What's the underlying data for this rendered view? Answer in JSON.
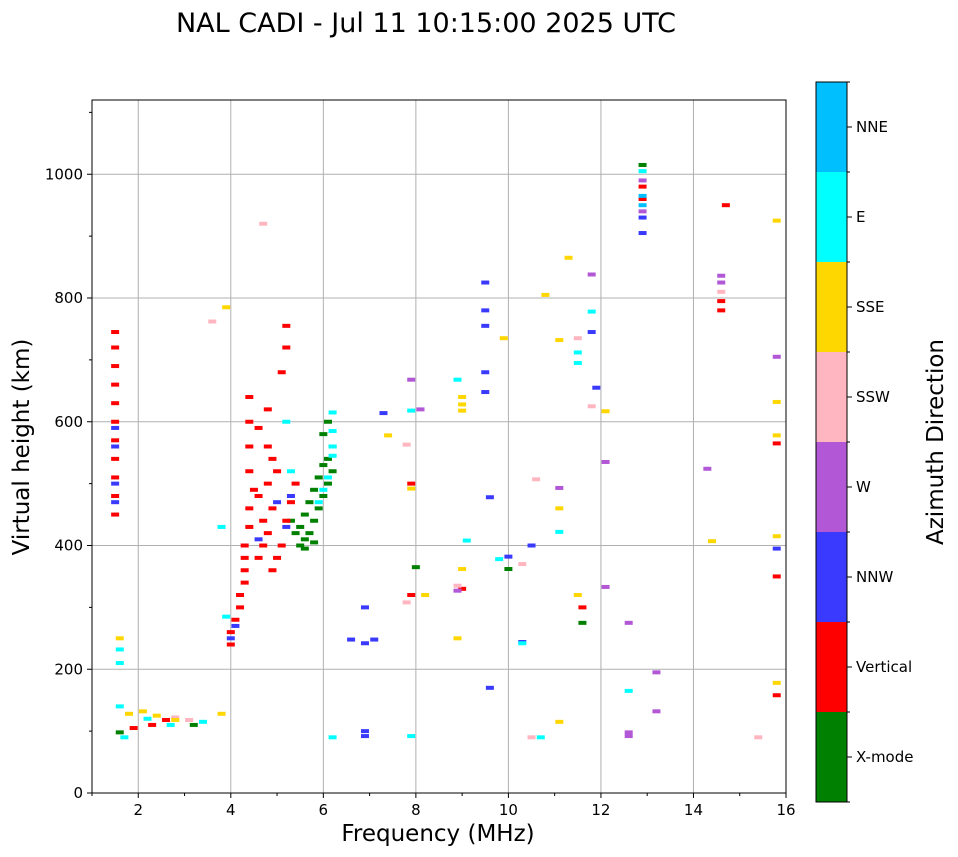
{
  "chart_data": {
    "type": "scatter",
    "title": "NAL CADI - Jul 11 10:15:00 2025 UTC",
    "xlabel": "Frequency (MHz)",
    "ylabel": "Virtual height (km)",
    "xlim": [
      1,
      16
    ],
    "ylim": [
      0,
      1120
    ],
    "xticks": [
      2,
      4,
      6,
      8,
      10,
      12,
      14,
      16
    ],
    "yticks": [
      0,
      200,
      400,
      600,
      800,
      1000
    ],
    "grid": true,
    "colorbar": {
      "label": "Azimuth Direction",
      "position": "right",
      "categories": [
        "X-mode",
        "Vertical",
        "NNW",
        "W",
        "SSW",
        "SSE",
        "E",
        "NNE"
      ],
      "colors": [
        "#008000",
        "#ff0000",
        "#3a3aff",
        "#b257d6",
        "#ffb6c1",
        "#ffd700",
        "#00ffff",
        "#00bfff"
      ]
    },
    "series": [
      {
        "name": "X-mode",
        "points": [
          [
            5.5,
            400
          ],
          [
            5.6,
            410
          ],
          [
            5.7,
            420
          ],
          [
            5.5,
            430
          ],
          [
            5.8,
            440
          ],
          [
            5.6,
            450
          ],
          [
            5.9,
            460
          ],
          [
            5.7,
            470
          ],
          [
            6.0,
            480
          ],
          [
            5.8,
            490
          ],
          [
            6.1,
            500
          ],
          [
            5.9,
            510
          ],
          [
            6.2,
            520
          ],
          [
            6.0,
            530
          ],
          [
            6.1,
            540
          ],
          [
            6.2,
            560
          ],
          [
            6.0,
            580
          ],
          [
            6.1,
            600
          ],
          [
            5.4,
            420
          ],
          [
            5.3,
            440
          ],
          [
            5.6,
            395
          ],
          [
            5.8,
            405
          ],
          [
            12.9,
            1015
          ],
          [
            1.6,
            98
          ],
          [
            3.2,
            110
          ],
          [
            11.6,
            275
          ],
          [
            8.0,
            365
          ],
          [
            10.0,
            362
          ]
        ]
      },
      {
        "name": "Vertical",
        "points": [
          [
            1.5,
            450
          ],
          [
            1.5,
            480
          ],
          [
            1.5,
            510
          ],
          [
            1.5,
            540
          ],
          [
            1.5,
            570
          ],
          [
            1.5,
            600
          ],
          [
            1.5,
            630
          ],
          [
            1.5,
            660
          ],
          [
            1.5,
            690
          ],
          [
            1.5,
            720
          ],
          [
            1.5,
            745
          ],
          [
            4.0,
            240
          ],
          [
            4.0,
            260
          ],
          [
            4.1,
            280
          ],
          [
            4.2,
            300
          ],
          [
            4.2,
            320
          ],
          [
            4.3,
            340
          ],
          [
            4.3,
            360
          ],
          [
            4.3,
            380
          ],
          [
            4.3,
            400
          ],
          [
            4.4,
            430
          ],
          [
            4.4,
            460
          ],
          [
            4.5,
            490
          ],
          [
            4.4,
            520
          ],
          [
            4.4,
            560
          ],
          [
            4.4,
            600
          ],
          [
            4.4,
            640
          ],
          [
            4.6,
            380
          ],
          [
            4.7,
            400
          ],
          [
            4.8,
            420
          ],
          [
            4.7,
            440
          ],
          [
            4.9,
            460
          ],
          [
            4.6,
            480
          ],
          [
            4.8,
            500
          ],
          [
            5.0,
            520
          ],
          [
            4.9,
            540
          ],
          [
            4.8,
            560
          ],
          [
            5.1,
            400
          ],
          [
            5.0,
            380
          ],
          [
            4.9,
            360
          ],
          [
            5.2,
            440
          ],
          [
            5.3,
            470
          ],
          [
            5.4,
            500
          ],
          [
            5.1,
            680
          ],
          [
            5.2,
            720
          ],
          [
            5.2,
            755
          ],
          [
            4.6,
            590
          ],
          [
            4.8,
            620
          ],
          [
            1.9,
            105
          ],
          [
            2.3,
            110
          ],
          [
            2.6,
            118
          ],
          [
            7.9,
            320
          ],
          [
            7.9,
            500
          ],
          [
            9.0,
            330
          ],
          [
            11.6,
            300
          ],
          [
            12.9,
            980
          ],
          [
            12.9,
            960
          ],
          [
            14.7,
            950
          ],
          [
            14.6,
            795
          ],
          [
            14.6,
            780
          ],
          [
            15.8,
            565
          ],
          [
            15.8,
            350
          ],
          [
            15.8,
            158
          ]
        ]
      },
      {
        "name": "NNW",
        "points": [
          [
            1.5,
            500
          ],
          [
            1.5,
            560
          ],
          [
            1.5,
            590
          ],
          [
            1.5,
            470
          ],
          [
            4.0,
            250
          ],
          [
            4.1,
            270
          ],
          [
            4.6,
            410
          ],
          [
            5.0,
            470
          ],
          [
            5.3,
            480
          ],
          [
            5.2,
            430
          ],
          [
            6.6,
            248
          ],
          [
            6.9,
            242
          ],
          [
            6.9,
            300
          ],
          [
            7.1,
            248
          ],
          [
            6.9,
            100
          ],
          [
            6.9,
            92
          ],
          [
            9.5,
            648
          ],
          [
            9.5,
            680
          ],
          [
            9.5,
            755
          ],
          [
            9.5,
            780
          ],
          [
            9.5,
            825
          ],
          [
            9.6,
            478
          ],
          [
            9.6,
            170
          ],
          [
            10.0,
            382
          ],
          [
            10.3,
            244
          ],
          [
            10.5,
            400
          ],
          [
            11.8,
            745
          ],
          [
            11.9,
            655
          ],
          [
            12.9,
            905
          ],
          [
            12.9,
            930
          ],
          [
            15.8,
            395
          ],
          [
            7.3,
            614
          ]
        ]
      },
      {
        "name": "W",
        "points": [
          [
            7.9,
            668
          ],
          [
            8.1,
            620
          ],
          [
            8.9,
            327
          ],
          [
            11.1,
            493
          ],
          [
            11.8,
            838
          ],
          [
            12.1,
            535
          ],
          [
            12.1,
            333
          ],
          [
            12.6,
            275
          ],
          [
            12.6,
            98
          ],
          [
            12.6,
            92
          ],
          [
            13.2,
            195
          ],
          [
            13.2,
            132
          ],
          [
            14.3,
            524
          ],
          [
            14.6,
            836
          ],
          [
            14.6,
            825
          ],
          [
            15.8,
            705
          ],
          [
            12.9,
            940
          ],
          [
            12.9,
            990
          ]
        ]
      },
      {
        "name": "SSW",
        "points": [
          [
            3.6,
            762
          ],
          [
            4.7,
            920
          ],
          [
            7.8,
            563
          ],
          [
            7.8,
            308
          ],
          [
            8.9,
            335
          ],
          [
            10.3,
            370
          ],
          [
            10.6,
            507
          ],
          [
            11.5,
            735
          ],
          [
            11.8,
            625
          ],
          [
            10.5,
            90
          ],
          [
            15.4,
            90
          ],
          [
            14.6,
            810
          ],
          [
            3.1,
            118
          ],
          [
            2.8,
            122
          ]
        ]
      },
      {
        "name": "SSE",
        "points": [
          [
            1.6,
            250
          ],
          [
            1.8,
            128
          ],
          [
            2.1,
            132
          ],
          [
            2.4,
            125
          ],
          [
            2.8,
            118
          ],
          [
            3.8,
            128
          ],
          [
            8.2,
            320
          ],
          [
            8.9,
            250
          ],
          [
            9.0,
            362
          ],
          [
            9.0,
            618
          ],
          [
            9.0,
            628
          ],
          [
            9.0,
            640
          ],
          [
            9.9,
            735
          ],
          [
            10.8,
            805
          ],
          [
            11.1,
            732
          ],
          [
            11.1,
            460
          ],
          [
            11.1,
            115
          ],
          [
            11.3,
            865
          ],
          [
            11.5,
            320
          ],
          [
            12.1,
            617
          ],
          [
            14.4,
            407
          ],
          [
            15.8,
            925
          ],
          [
            15.8,
            632
          ],
          [
            15.8,
            578
          ],
          [
            15.8,
            415
          ],
          [
            15.8,
            178
          ],
          [
            7.4,
            578
          ],
          [
            7.9,
            492
          ],
          [
            3.9,
            785
          ]
        ]
      },
      {
        "name": "E",
        "points": [
          [
            1.6,
            140
          ],
          [
            1.6,
            210
          ],
          [
            1.6,
            232
          ],
          [
            1.7,
            90
          ],
          [
            2.2,
            120
          ],
          [
            2.7,
            110
          ],
          [
            3.4,
            115
          ],
          [
            3.8,
            430
          ],
          [
            3.9,
            285
          ],
          [
            6.2,
            615
          ],
          [
            6.2,
            585
          ],
          [
            6.2,
            560
          ],
          [
            6.2,
            545
          ],
          [
            6.1,
            510
          ],
          [
            6.0,
            490
          ],
          [
            5.9,
            470
          ],
          [
            5.3,
            520
          ],
          [
            5.2,
            600
          ],
          [
            6.2,
            90
          ],
          [
            7.9,
            92
          ],
          [
            7.9,
            618
          ],
          [
            8.9,
            668
          ],
          [
            9.1,
            408
          ],
          [
            9.8,
            378
          ],
          [
            10.3,
            242
          ],
          [
            10.7,
            90
          ],
          [
            11.1,
            422
          ],
          [
            11.5,
            695
          ],
          [
            11.5,
            712
          ],
          [
            11.8,
            778
          ],
          [
            12.6,
            165
          ],
          [
            12.9,
            1005
          ]
        ]
      },
      {
        "name": "NNE",
        "points": [
          [
            12.9,
            950
          ],
          [
            12.9,
            965
          ]
        ]
      }
    ]
  }
}
